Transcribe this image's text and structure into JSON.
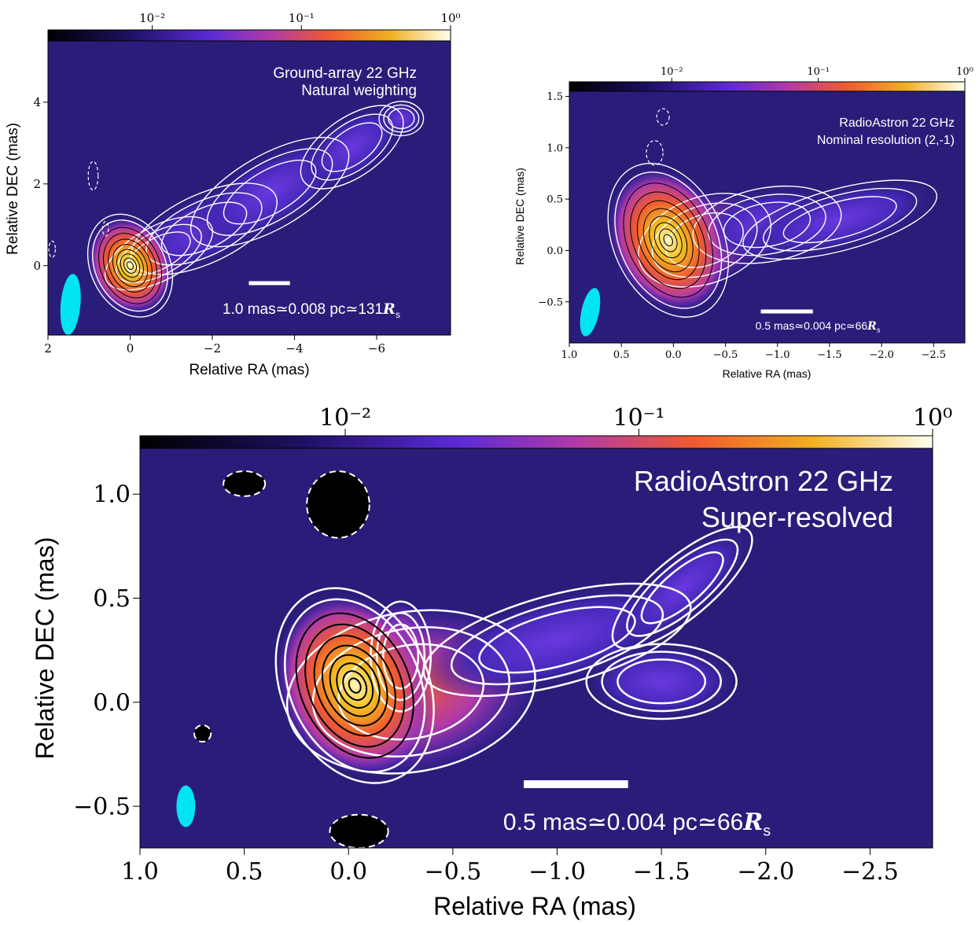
{
  "chart_data": [
    {
      "type": "heatmap",
      "panel": "ground-array",
      "title": "",
      "annotation_lines": [
        "Ground-array 22 GHz",
        "Natural weighting"
      ],
      "scalebar_label_prefix": "1.0 mas≃0.008 pc≃131",
      "scalebar_label_symbol": "R",
      "scalebar_label_subscript": "s",
      "scalebar_mas": 1.0,
      "xlabel": "Relative RA (mas)",
      "ylabel": "Relative DEC (mas)",
      "xlim": [
        2,
        -7.8
      ],
      "ylim": [
        -1.7,
        5.5
      ],
      "xticks": [
        2,
        0,
        -2,
        -4,
        -6
      ],
      "xtick_labels": [
        "2",
        "0",
        "−2",
        "−4",
        "−6"
      ],
      "yticks": [
        0,
        2,
        4
      ],
      "ytick_labels": [
        "0",
        "2",
        "4"
      ],
      "colorbar": {
        "scale": "log",
        "range": [
          0.002,
          1.0
        ],
        "ticks": [
          0.01,
          0.1,
          1
        ],
        "tick_labels": [
          "10⁻²",
          "10⁻¹",
          "10⁰"
        ]
      },
      "beam": {
        "x": 1.45,
        "y": -0.95,
        "major": 0.75,
        "minor": 0.24,
        "pa_deg": 5,
        "color": "#00e5f0"
      },
      "core": {
        "x": 0.0,
        "y": 0.0
      },
      "jet_blobs": [
        {
          "x": -0.7,
          "y": 0.3,
          "a": 1.2,
          "b": 0.55,
          "rot": -28,
          "level": 0.3
        },
        {
          "x": -1.8,
          "y": 0.9,
          "a": 1.6,
          "b": 0.7,
          "rot": -25,
          "level": 0.045
        },
        {
          "x": -3.4,
          "y": 1.8,
          "a": 1.8,
          "b": 0.75,
          "rot": -30,
          "level": 0.03
        },
        {
          "x": -5.4,
          "y": 2.9,
          "a": 1.2,
          "b": 0.6,
          "rot": -35,
          "level": 0.018
        },
        {
          "x": -6.6,
          "y": 3.6,
          "a": 0.45,
          "b": 0.35,
          "rot": 0,
          "level": 0.012
        }
      ]
    },
    {
      "type": "heatmap",
      "panel": "radioastron-nominal",
      "title": "",
      "annotation_lines": [
        "RadioAstron 22 GHz",
        "Nominal resolution (2,-1)"
      ],
      "scalebar_label_prefix": "0.5 mas≃0.004 pc≃66",
      "scalebar_label_symbol": "R",
      "scalebar_label_subscript": "s",
      "scalebar_mas": 0.5,
      "xlabel": "Relative RA (mas)",
      "ylabel": "Relative DEC (mas)",
      "xlim": [
        1.0,
        -2.8
      ],
      "ylim": [
        -0.9,
        1.55
      ],
      "xticks": [
        1.0,
        0.5,
        0.0,
        -0.5,
        -1.0,
        -1.5,
        -2.0,
        -2.5
      ],
      "xtick_labels": [
        "1.0",
        "0.5",
        "0.0",
        "−0.5",
        "−1.0",
        "−1.5",
        "−2.0",
        "−2.5"
      ],
      "yticks": [
        -0.5,
        0.0,
        0.5,
        1.0,
        1.5
      ],
      "ytick_labels": [
        "−0.5",
        "0.0",
        "0.5",
        "1.0",
        "1.5"
      ],
      "colorbar": {
        "scale": "log",
        "range": [
          0.002,
          1.0
        ],
        "ticks": [
          0.01,
          0.1,
          1
        ],
        "tick_labels": [
          "10⁻²",
          "10⁻¹",
          "10⁰"
        ]
      },
      "beam": {
        "x": 0.8,
        "y": -0.6,
        "major": 0.24,
        "minor": 0.085,
        "pa_deg": 12,
        "color": "#00e5f0"
      },
      "core": {
        "x": 0.05,
        "y": 0.1
      },
      "jet_blobs": [
        {
          "x": -0.3,
          "y": 0.1,
          "a": 0.55,
          "b": 0.35,
          "rot": -20,
          "level": 0.25
        },
        {
          "x": -0.9,
          "y": 0.25,
          "a": 0.6,
          "b": 0.3,
          "rot": -10,
          "level": 0.03
        },
        {
          "x": -1.6,
          "y": 0.3,
          "a": 0.8,
          "b": 0.25,
          "rot": -15,
          "level": 0.015
        }
      ]
    },
    {
      "type": "heatmap",
      "panel": "radioastron-super",
      "title": "",
      "annotation_lines": [
        "RadioAstron 22 GHz",
        "Super-resolved"
      ],
      "scalebar_label_prefix": "0.5 mas≃0.004 pc≃66",
      "scalebar_label_symbol": "R",
      "scalebar_label_subscript": "s",
      "scalebar_mas": 0.5,
      "xlabel": "Relative RA (mas)",
      "ylabel": "Relative DEC (mas)",
      "xlim": [
        1.0,
        -2.8
      ],
      "ylim": [
        -0.7,
        1.22
      ],
      "xticks": [
        1.0,
        0.5,
        0.0,
        -0.5,
        -1.0,
        -1.5,
        -2.0,
        -2.5
      ],
      "xtick_labels": [
        "1.0",
        "0.5",
        "0.0",
        "−0.5",
        "−1.0",
        "−1.5",
        "−2.0",
        "−2.5"
      ],
      "yticks": [
        -0.5,
        0.0,
        0.5,
        1.0
      ],
      "ytick_labels": [
        "−0.5",
        "0.0",
        "0.5",
        "1.0"
      ],
      "colorbar": {
        "scale": "log",
        "range": [
          0.002,
          1.0
        ],
        "ticks": [
          0.01,
          0.1,
          1
        ],
        "tick_labels": [
          "10⁻²",
          "10⁻¹",
          "10⁰"
        ]
      },
      "beam": {
        "x": 0.78,
        "y": -0.5,
        "major": 0.1,
        "minor": 0.045,
        "pa_deg": 0,
        "color": "#00e5f0"
      },
      "core": {
        "x": -0.03,
        "y": 0.08
      },
      "jet_blobs": [
        {
          "x": -0.25,
          "y": 0.22,
          "a": 0.12,
          "b": 0.22,
          "rot": 0,
          "level": 0.5
        },
        {
          "x": -0.3,
          "y": 0.05,
          "a": 0.5,
          "b": 0.32,
          "rot": -10,
          "level": 0.14
        },
        {
          "x": -1.0,
          "y": 0.3,
          "a": 0.55,
          "b": 0.18,
          "rot": -15,
          "level": 0.02
        },
        {
          "x": -1.5,
          "y": 0.1,
          "a": 0.3,
          "b": 0.15,
          "rot": 0,
          "level": 0.012
        },
        {
          "x": -1.6,
          "y": 0.55,
          "a": 0.35,
          "b": 0.12,
          "rot": -40,
          "level": 0.012
        }
      ]
    }
  ]
}
